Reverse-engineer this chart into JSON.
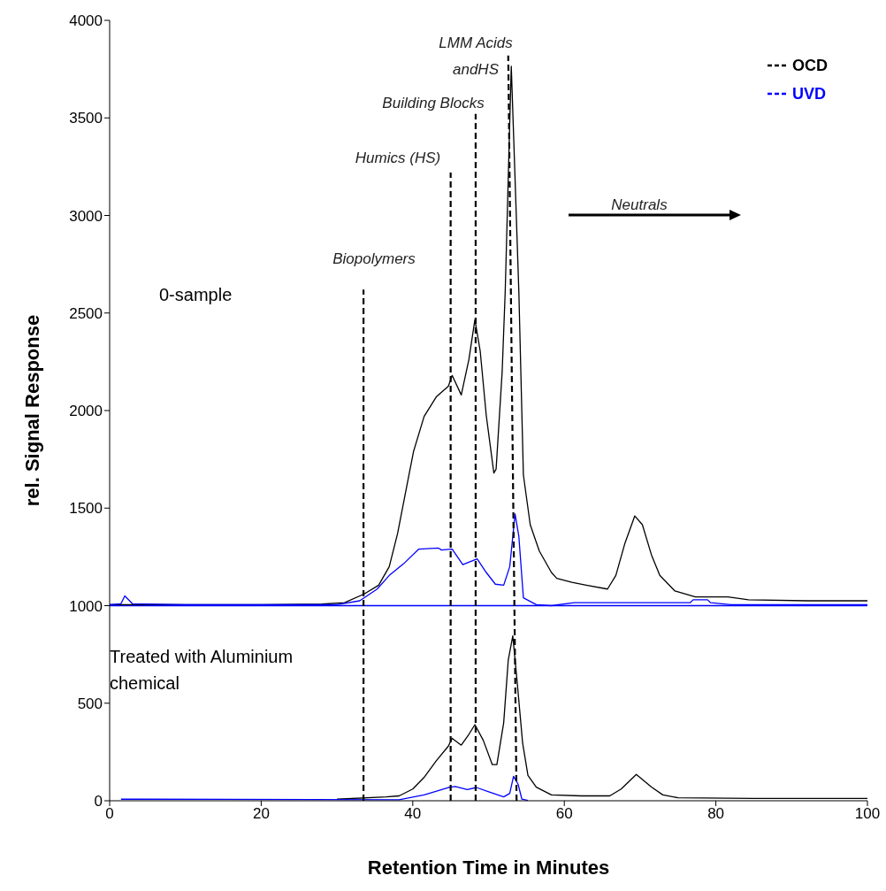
{
  "chart_data": {
    "type": "line",
    "xlabel": "Retention Time in Minutes",
    "ylabel": "rel. Signal Response",
    "xlim": [
      0,
      100
    ],
    "xticks": [
      0,
      20,
      40,
      60,
      80,
      100
    ],
    "ylim": [
      0,
      4000
    ],
    "yticks": [
      0,
      500,
      1000,
      1500,
      2000,
      2500,
      3000,
      3500,
      4000
    ],
    "legend": "top right",
    "marker": "none",
    "line_style": "solid",
    "series": [
      {
        "name": "OCD",
        "color": "#000000",
        "x": [
          0,
          10,
          20,
          28,
          31,
          33.6,
          35.5,
          36.9,
          38,
          39.2,
          40.1,
          41.5,
          43.1,
          44.7,
          45.2,
          46.4,
          47.4,
          48.2,
          48.9,
          49.7,
          50.7,
          51,
          51.8,
          52.2,
          53,
          54,
          54.6,
          55.5,
          56.7,
          58.3,
          59,
          61,
          62.9,
          65.7,
          66.8,
          68,
          69.3,
          70.3,
          71.5,
          72.6,
          74.6,
          77.3,
          81.6,
          84.3,
          92.1,
          100
        ],
        "values": [
          1005,
          1005,
          1005,
          1008,
          1015,
          1060,
          1105,
          1200,
          1370,
          1610,
          1790,
          1970,
          2070,
          2125,
          2180,
          2080,
          2260,
          2465,
          2305,
          1975,
          1680,
          1700,
          2200,
          2610,
          3765,
          2610,
          1670,
          1415,
          1280,
          1170,
          1140,
          1120,
          1105,
          1085,
          1155,
          1320,
          1460,
          1415,
          1260,
          1155,
          1075,
          1045,
          1045,
          1030,
          1025,
          1025
        ]
      },
      {
        "name": "UVD",
        "color": "#0000ff",
        "x": [
          0,
          1.5,
          2,
          3,
          10,
          20,
          30,
          33,
          35.3,
          36.9,
          38.8,
          40.8,
          43.4,
          43.8,
          45.2,
          46.6,
          48.5,
          49.7,
          50.9,
          52,
          52.8,
          53.5,
          54,
          54.6,
          56.3,
          58.3,
          61.3,
          76.6,
          77,
          78.9,
          79.3,
          82,
          100
        ],
        "values": [
          1005,
          1010,
          1050,
          1010,
          1005,
          1005,
          1005,
          1025,
          1085,
          1155,
          1215,
          1290,
          1295,
          1285,
          1290,
          1210,
          1240,
          1170,
          1110,
          1105,
          1200,
          1470,
          1355,
          1040,
          1005,
          1000,
          1015,
          1015,
          1030,
          1030,
          1015,
          1005,
          1005
        ]
      },
      {
        "color": "#000000",
        "x": [
          30,
          36.5,
          38.2,
          40,
          41.5,
          43.1,
          44.7,
          45.2,
          46.4,
          47.4,
          48.2,
          49.3,
          50.5,
          51.1,
          52,
          52.6,
          53.2,
          53.8,
          54.5,
          55.2,
          56.3,
          58.3,
          62.2,
          66,
          67.5,
          69.5,
          71.5,
          73,
          75,
          85,
          100
        ],
        "values": [
          8,
          20,
          25,
          60,
          120,
          205,
          280,
          320,
          285,
          340,
          390,
          310,
          185,
          185,
          400,
          720,
          845,
          600,
          295,
          130,
          70,
          30,
          25,
          25,
          60,
          135,
          70,
          30,
          15,
          12,
          12
        ]
      },
      {
        "color": "#0000ff",
        "x": [
          1.5,
          4,
          38.2,
          41.5,
          44.7,
          45.6,
          47.2,
          48.4,
          50.1,
          52,
          52.8,
          53.3,
          53.9,
          54.4,
          55.2
        ],
        "values": [
          8,
          8,
          5,
          30,
          68,
          73,
          57,
          68,
          45,
          20,
          38,
          125,
          85,
          8,
          2
        ]
      },
      {
        "color": "#000000",
        "line_style": "dashed",
        "x": [
          33.5,
          33.5
        ],
        "values": [
          0,
          2620
        ]
      },
      {
        "color": "#000000",
        "line_style": "dashed",
        "x": [
          45,
          45
        ],
        "values": [
          0,
          3220
        ]
      },
      {
        "color": "#000000",
        "line_style": "dashed",
        "x": [
          48.3,
          48.3
        ],
        "values": [
          0,
          3520
        ]
      },
      {
        "color": "#000000",
        "line_style": "dashed",
        "x": [
          53.7,
          52.6
        ],
        "values": [
          0,
          3820
        ]
      }
    ],
    "ref_lines": [
      {
        "axis": "y",
        "value": 1000,
        "color": "#0000ff"
      }
    ],
    "annotations": [
      "Biopolymers",
      "Humics (HS)",
      "Building Blocks",
      "LMM Acids\nandHS",
      "Neutrals",
      "0-sample",
      "Treated with Aluminium chemical"
    ]
  }
}
